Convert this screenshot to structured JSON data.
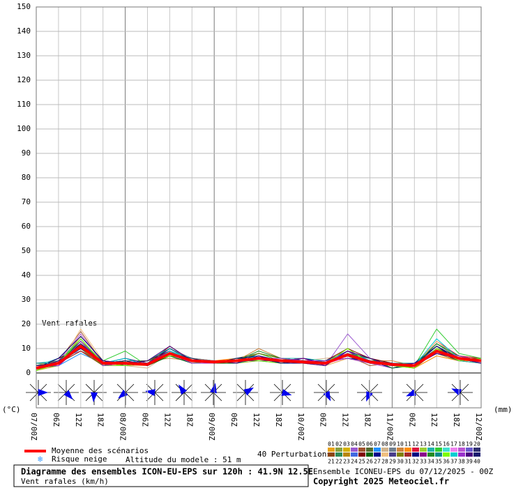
{
  "chart_data": {
    "type": "line",
    "title": "Diagramme des ensembles ICON-EU-EPS sur 120h : 41.9N 12.5E",
    "y_label": "Vent rafales (km/h)",
    "annotation": "Vent rafales",
    "left_unit": "(°C)",
    "right_unit": "(mm)",
    "snow_legend": "Risque neige",
    "altitude_note": "Altitude du modele : 51 m",
    "perturbations_label": "40 Perturbations",
    "run_info": "Ensemble ICONEU-EPS du 07/12/2025 - 00Z",
    "copyright": "Copyright 2025 Meteociel.fr",
    "categories": [
      "07/00Z",
      "06Z",
      "12Z",
      "18Z",
      "08/00Z",
      "06Z",
      "12Z",
      "18Z",
      "09/00Z",
      "06Z",
      "12Z",
      "18Z",
      "10/00Z",
      "06Z",
      "12Z",
      "18Z",
      "11/00Z",
      "06Z",
      "12Z",
      "18Z",
      "12/00Z"
    ],
    "ylim": [
      0,
      150
    ],
    "yticks": [
      0,
      10,
      20,
      30,
      40,
      50,
      60,
      70,
      80,
      90,
      100,
      110,
      120,
      130,
      140,
      150
    ],
    "grid": true,
    "series": [
      {
        "name": "01",
        "color": "#e8a317",
        "values": [
          3,
          5,
          12,
          5,
          4,
          4,
          9,
          6,
          5,
          5,
          7,
          5,
          5,
          4,
          8,
          5,
          4,
          3,
          10,
          6,
          5
        ]
      },
      {
        "name": "02",
        "color": "#8aa040",
        "values": [
          2,
          4,
          10,
          4,
          3,
          3,
          7,
          5,
          4,
          6,
          6,
          6,
          4,
          5,
          7,
          4,
          3,
          3,
          8,
          5,
          4
        ]
      },
      {
        "name": "03",
        "color": "#d4b000",
        "values": [
          1,
          3,
          14,
          3,
          5,
          4,
          8,
          4,
          5,
          5,
          5,
          5,
          5,
          4,
          9,
          5,
          4,
          2,
          9,
          7,
          6
        ]
      },
      {
        "name": "04",
        "color": "#9b59d0",
        "values": [
          3,
          6,
          9,
          5,
          4,
          3,
          10,
          5,
          4,
          4,
          6,
          4,
          4,
          3,
          16,
          6,
          3,
          4,
          11,
          6,
          5
        ]
      },
      {
        "name": "05",
        "color": "#a0522d",
        "values": [
          2,
          5,
          17,
          4,
          3,
          4,
          8,
          6,
          5,
          5,
          7,
          5,
          6,
          4,
          7,
          3,
          4,
          3,
          8,
          5,
          4
        ]
      },
      {
        "name": "06",
        "color": "#556b2f",
        "values": [
          4,
          4,
          11,
          3,
          5,
          5,
          9,
          5,
          4,
          6,
          8,
          6,
          5,
          5,
          6,
          4,
          3,
          2,
          9,
          6,
          6
        ]
      },
      {
        "name": "07",
        "color": "#1e90ff",
        "values": [
          2,
          3,
          8,
          4,
          4,
          3,
          7,
          4,
          5,
          5,
          6,
          5,
          4,
          4,
          8,
          5,
          2,
          3,
          10,
          7,
          5
        ]
      },
      {
        "name": "08",
        "color": "#d2b48c",
        "values": [
          1,
          5,
          13,
          5,
          3,
          2,
          8,
          5,
          4,
          4,
          5,
          4,
          5,
          6,
          7,
          6,
          4,
          3,
          9,
          5,
          4
        ]
      },
      {
        "name": "09",
        "color": "#708090",
        "values": [
          3,
          4,
          12,
          4,
          6,
          4,
          10,
          6,
          5,
          5,
          6,
          5,
          4,
          4,
          9,
          4,
          3,
          4,
          12,
          6,
          5
        ]
      },
      {
        "name": "10",
        "color": "#cd853f",
        "values": [
          2,
          6,
          10,
          3,
          4,
          5,
          6,
          5,
          4,
          5,
          10,
          6,
          5,
          3,
          6,
          5,
          5,
          3,
          8,
          6,
          4
        ]
      },
      {
        "name": "11",
        "color": "#ff8c00",
        "values": [
          2,
          4,
          15,
          5,
          4,
          3,
          9,
          4,
          5,
          6,
          6,
          5,
          4,
          4,
          8,
          4,
          3,
          2,
          7,
          5,
          5
        ]
      },
      {
        "name": "12",
        "color": "#dc143c",
        "values": [
          3,
          3,
          11,
          4,
          5,
          4,
          8,
          6,
          4,
          5,
          7,
          4,
          5,
          5,
          7,
          5,
          4,
          3,
          13,
          7,
          6
        ]
      },
      {
        "name": "13",
        "color": "#9acd32",
        "values": [
          1,
          4,
          9,
          3,
          3,
          3,
          7,
          5,
          5,
          4,
          5,
          5,
          4,
          4,
          10,
          4,
          3,
          3,
          9,
          6,
          5
        ]
      },
      {
        "name": "14",
        "color": "#20b2aa",
        "values": [
          4,
          5,
          14,
          4,
          4,
          4,
          11,
          5,
          4,
          5,
          6,
          6,
          6,
          5,
          7,
          6,
          4,
          4,
          8,
          5,
          4
        ]
      },
      {
        "name": "15",
        "color": "#32cd32",
        "values": [
          2,
          4,
          10,
          5,
          9,
          3,
          8,
          4,
          5,
          5,
          8,
          5,
          4,
          4,
          8,
          5,
          3,
          3,
          18,
          8,
          6
        ]
      },
      {
        "name": "16",
        "color": "#40e0d0",
        "values": [
          3,
          6,
          12,
          4,
          4,
          5,
          9,
          6,
          4,
          6,
          6,
          4,
          5,
          3,
          9,
          4,
          4,
          2,
          10,
          6,
          5
        ]
      },
      {
        "name": "17",
        "color": "#ee82ee",
        "values": [
          2,
          3,
          11,
          3,
          5,
          4,
          7,
          5,
          5,
          5,
          7,
          5,
          4,
          4,
          6,
          5,
          3,
          3,
          9,
          7,
          4
        ]
      },
      {
        "name": "18",
        "color": "#ba55d3",
        "values": [
          1,
          5,
          16,
          4,
          3,
          3,
          8,
          4,
          4,
          4,
          6,
          6,
          5,
          5,
          8,
          4,
          2,
          4,
          11,
          6,
          5
        ]
      },
      {
        "name": "19",
        "color": "#6a5acd",
        "values": [
          3,
          4,
          10,
          5,
          4,
          4,
          10,
          5,
          5,
          5,
          5,
          5,
          4,
          4,
          7,
          5,
          4,
          3,
          8,
          5,
          6
        ]
      },
      {
        "name": "20",
        "color": "#2f2f6f",
        "values": [
          2,
          5,
          13,
          4,
          6,
          3,
          8,
          6,
          4,
          6,
          7,
          4,
          6,
          4,
          9,
          6,
          3,
          3,
          10,
          6,
          4
        ]
      },
      {
        "name": "21",
        "color": "#8b4513",
        "values": [
          4,
          4,
          9,
          3,
          4,
          5,
          9,
          5,
          5,
          5,
          6,
          5,
          4,
          5,
          7,
          4,
          4,
          2,
          9,
          7,
          5
        ]
      },
      {
        "name": "22",
        "color": "#2e8b57",
        "values": [
          2,
          3,
          12,
          5,
          3,
          4,
          7,
          4,
          4,
          4,
          8,
          6,
          5,
          4,
          8,
          5,
          3,
          3,
          12,
          6,
          5
        ]
      },
      {
        "name": "23",
        "color": "#b8860b",
        "values": [
          3,
          5,
          11,
          4,
          5,
          3,
          11,
          5,
          5,
          5,
          6,
          5,
          4,
          3,
          6,
          4,
          4,
          4,
          8,
          5,
          6
        ]
      },
      {
        "name": "24",
        "color": "#4169e1",
        "values": [
          1,
          4,
          14,
          4,
          4,
          4,
          8,
          6,
          4,
          6,
          5,
          4,
          5,
          4,
          9,
          5,
          3,
          3,
          9,
          6,
          4
        ]
      },
      {
        "name": "25",
        "color": "#800000",
        "values": [
          2,
          6,
          10,
          5,
          3,
          5,
          9,
          5,
          5,
          5,
          7,
          5,
          4,
          5,
          10,
          6,
          4,
          2,
          10,
          7,
          5
        ]
      },
      {
        "name": "26",
        "color": "#006400",
        "values": [
          3,
          4,
          13,
          3,
          5,
          3,
          7,
          4,
          4,
          4,
          6,
          6,
          5,
          4,
          7,
          4,
          3,
          3,
          11,
          6,
          5
        ]
      },
      {
        "name": "27",
        "color": "#00008b",
        "values": [
          2,
          5,
          11,
          4,
          4,
          4,
          10,
          5,
          5,
          5,
          7,
          5,
          6,
          4,
          8,
          5,
          2,
          4,
          9,
          5,
          6
        ]
      },
      {
        "name": "28",
        "color": "#f0c080",
        "values": [
          4,
          3,
          18,
          5,
          3,
          3,
          8,
          6,
          4,
          6,
          6,
          4,
          4,
          3,
          6,
          4,
          4,
          3,
          13,
          6,
          4
        ]
      },
      {
        "name": "29",
        "color": "#483d8b",
        "values": [
          2,
          4,
          12,
          4,
          6,
          4,
          9,
          5,
          5,
          5,
          5,
          5,
          5,
          5,
          9,
          6,
          3,
          3,
          8,
          6,
          5
        ]
      },
      {
        "name": "30",
        "color": "#808000",
        "values": [
          1,
          5,
          10,
          3,
          4,
          5,
          8,
          4,
          4,
          5,
          8,
          6,
          4,
          4,
          7,
          5,
          4,
          2,
          10,
          7,
          5
        ]
      },
      {
        "name": "31",
        "color": "#a52a2a",
        "values": [
          3,
          4,
          9,
          4,
          5,
          3,
          11,
          5,
          5,
          4,
          6,
          5,
          5,
          4,
          8,
          4,
          3,
          3,
          9,
          6,
          4
        ]
      },
      {
        "name": "32",
        "color": "#000080",
        "values": [
          2,
          6,
          15,
          5,
          3,
          4,
          7,
          6,
          4,
          6,
          7,
          4,
          4,
          5,
          6,
          5,
          4,
          4,
          11,
          5,
          6
        ]
      },
      {
        "name": "33",
        "color": "#8b008b",
        "values": [
          3,
          3,
          11,
          4,
          4,
          4,
          9,
          5,
          5,
          5,
          6,
          5,
          6,
          3,
          9,
          4,
          3,
          3,
          8,
          6,
          5
        ]
      },
      {
        "name": "34",
        "color": "#228b22",
        "values": [
          2,
          5,
          12,
          3,
          5,
          3,
          8,
          4,
          4,
          5,
          9,
          6,
          5,
          4,
          8,
          6,
          2,
          3,
          12,
          7,
          5
        ]
      },
      {
        "name": "35",
        "color": "#008b8b",
        "values": [
          4,
          4,
          10,
          5,
          4,
          5,
          10,
          5,
          5,
          4,
          6,
          5,
          4,
          5,
          7,
          5,
          4,
          4,
          9,
          6,
          4
        ]
      },
      {
        "name": "36",
        "color": "#7cfc00",
        "values": [
          1,
          4,
          14,
          4,
          3,
          4,
          7,
          6,
          4,
          6,
          5,
          4,
          5,
          4,
          10,
          4,
          3,
          2,
          10,
          5,
          6
        ]
      },
      {
        "name": "37",
        "color": "#00ced1",
        "values": [
          2,
          5,
          11,
          4,
          6,
          3,
          9,
          5,
          5,
          5,
          7,
          5,
          4,
          4,
          8,
          5,
          4,
          3,
          14,
          6,
          5
        ]
      },
      {
        "name": "38",
        "color": "#9932cc",
        "values": [
          3,
          3,
          13,
          3,
          4,
          4,
          8,
          4,
          4,
          5,
          6,
          6,
          5,
          5,
          6,
          4,
          3,
          3,
          9,
          7,
          5
        ]
      },
      {
        "name": "39",
        "color": "#4b0082",
        "values": [
          2,
          5,
          10,
          5,
          4,
          5,
          11,
          5,
          5,
          4,
          7,
          5,
          4,
          3,
          9,
          6,
          3,
          4,
          8,
          6,
          4
        ]
      },
      {
        "name": "40",
        "color": "#191970",
        "values": [
          3,
          4,
          12,
          4,
          5,
          3,
          8,
          6,
          4,
          6,
          6,
          4,
          5,
          4,
          7,
          5,
          4,
          3,
          11,
          6,
          5
        ]
      },
      {
        "name": "Moyenne des scénarios",
        "color": "#ff0000",
        "values": [
          2,
          4,
          11,
          4,
          4,
          3.5,
          8,
          5,
          4.5,
          5,
          6,
          5,
          4.5,
          4,
          7.5,
          4.5,
          3.5,
          3,
          9,
          6,
          5
        ]
      }
    ]
  }
}
